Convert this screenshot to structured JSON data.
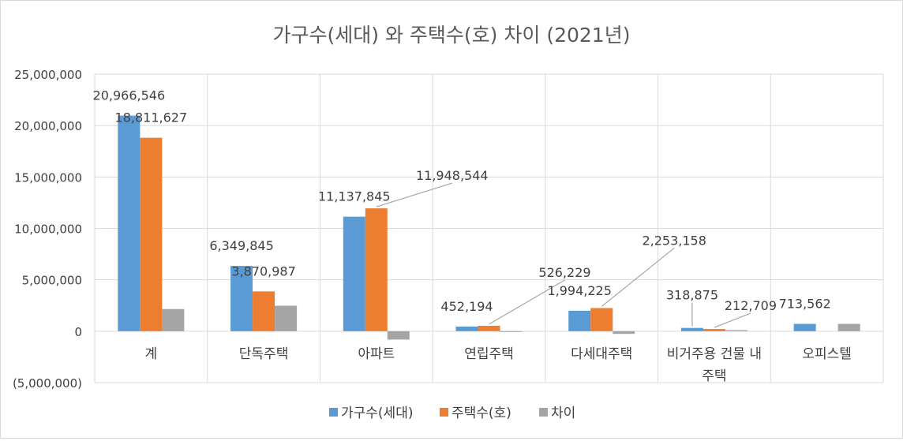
{
  "chart_data": {
    "type": "bar",
    "title": "가구수(세대) 와 주택수(호) 차이 (2021년)",
    "categories": [
      "계",
      "단독주택",
      "아파트",
      "연립주택",
      "다세대주택",
      "비거주용 건물 내 주택",
      "오피스텔"
    ],
    "category_lines": [
      [
        "계"
      ],
      [
        "단독주택"
      ],
      [
        "아파트"
      ],
      [
        "연립주택"
      ],
      [
        "다세대주택"
      ],
      [
        "비거주용 건물 내",
        "주택"
      ],
      [
        "오피스텔"
      ]
    ],
    "series": [
      {
        "name": "가구수(세대)",
        "color": "#5b9bd5",
        "values": [
          20966546,
          6349845,
          11137845,
          452194,
          1994225,
          318875,
          713562
        ],
        "labels": [
          "20,966,546",
          "6,349,845",
          "11,137,845",
          "452,194",
          "1,994,225",
          "318,875",
          "713,562"
        ]
      },
      {
        "name": "주택수(호)",
        "color": "#ed7d31",
        "values": [
          18811627,
          3870987,
          11948544,
          526229,
          2253158,
          212709,
          null
        ],
        "labels": [
          "18,811,627",
          "3,870,987",
          "11,948,544",
          "526,229",
          "2,253,158",
          "212,709",
          ""
        ]
      },
      {
        "name": "차이",
        "color": "#a5a5a5",
        "values": [
          2154919,
          2478858,
          -810699,
          -74035,
          -258933,
          106166,
          713562
        ],
        "labels": [
          "",
          "",
          "",
          "",
          "",
          "",
          ""
        ]
      }
    ],
    "ylim": [
      -5000000,
      25000000
    ],
    "yticks": [
      -5000000,
      0,
      5000000,
      10000000,
      15000000,
      20000000,
      25000000
    ],
    "ytick_labels": [
      "(5,000,000)",
      "0",
      "5,000,000",
      "10,000,000",
      "15,000,000",
      "20,000,000",
      "25,000,000"
    ],
    "grid": true,
    "legend": "bottom"
  }
}
